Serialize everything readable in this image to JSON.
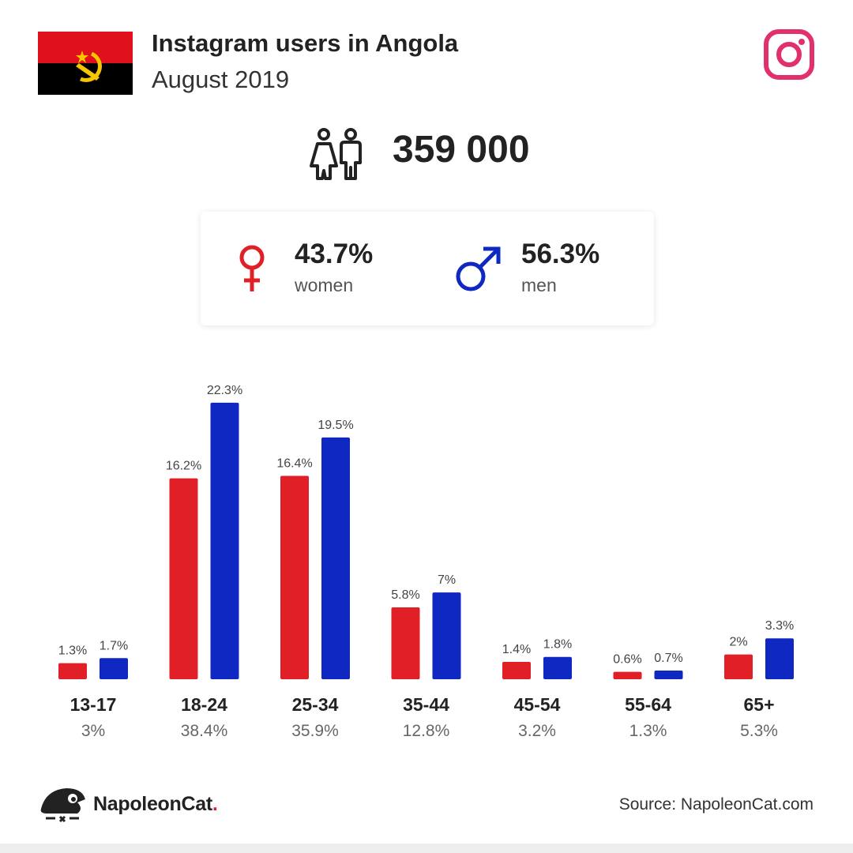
{
  "header": {
    "title": "Instagram users in Angola",
    "subtitle": "August 2019"
  },
  "total_users": "359 000",
  "gender": {
    "women": {
      "value": "43.7%",
      "label": "women"
    },
    "men": {
      "value": "56.3%",
      "label": "men"
    }
  },
  "colors": {
    "women": "#e01f26",
    "men": "#0f28c2",
    "instagram": "#e1306c",
    "flag_red": "#e0101c",
    "flag_black": "#000000",
    "flag_emblem": "#f7c500"
  },
  "icons": {
    "flag": "angola-flag-icon",
    "platform": "instagram-icon",
    "users": "people-icon",
    "female": "female-symbol-icon",
    "male": "male-symbol-icon",
    "brand": "napoleoncat-logo-icon"
  },
  "chart_data": {
    "type": "bar",
    "categories": [
      "13-17",
      "18-24",
      "25-34",
      "35-44",
      "45-54",
      "55-64",
      "65+"
    ],
    "category_totals": [
      "3%",
      "38.4%",
      "35.9%",
      "12.8%",
      "3.2%",
      "1.3%",
      "5.3%"
    ],
    "series": [
      {
        "key": "women",
        "values": [
          1.3,
          16.2,
          16.4,
          5.8,
          1.4,
          0.6,
          2
        ],
        "labels": [
          "1.3%",
          "16.2%",
          "16.4%",
          "5.8%",
          "1.4%",
          "0.6%",
          "2%"
        ]
      },
      {
        "key": "men",
        "values": [
          1.7,
          22.3,
          19.5,
          7,
          1.8,
          0.7,
          3.3
        ],
        "labels": [
          "1.7%",
          "22.3%",
          "19.5%",
          "7%",
          "1.8%",
          "0.7%",
          "3.3%"
        ]
      }
    ],
    "grid": false,
    "legend": "none"
  },
  "footer": {
    "brand": "NapoleonCat",
    "brand_dot": ".",
    "source": "Source: NapoleonCat.com"
  }
}
